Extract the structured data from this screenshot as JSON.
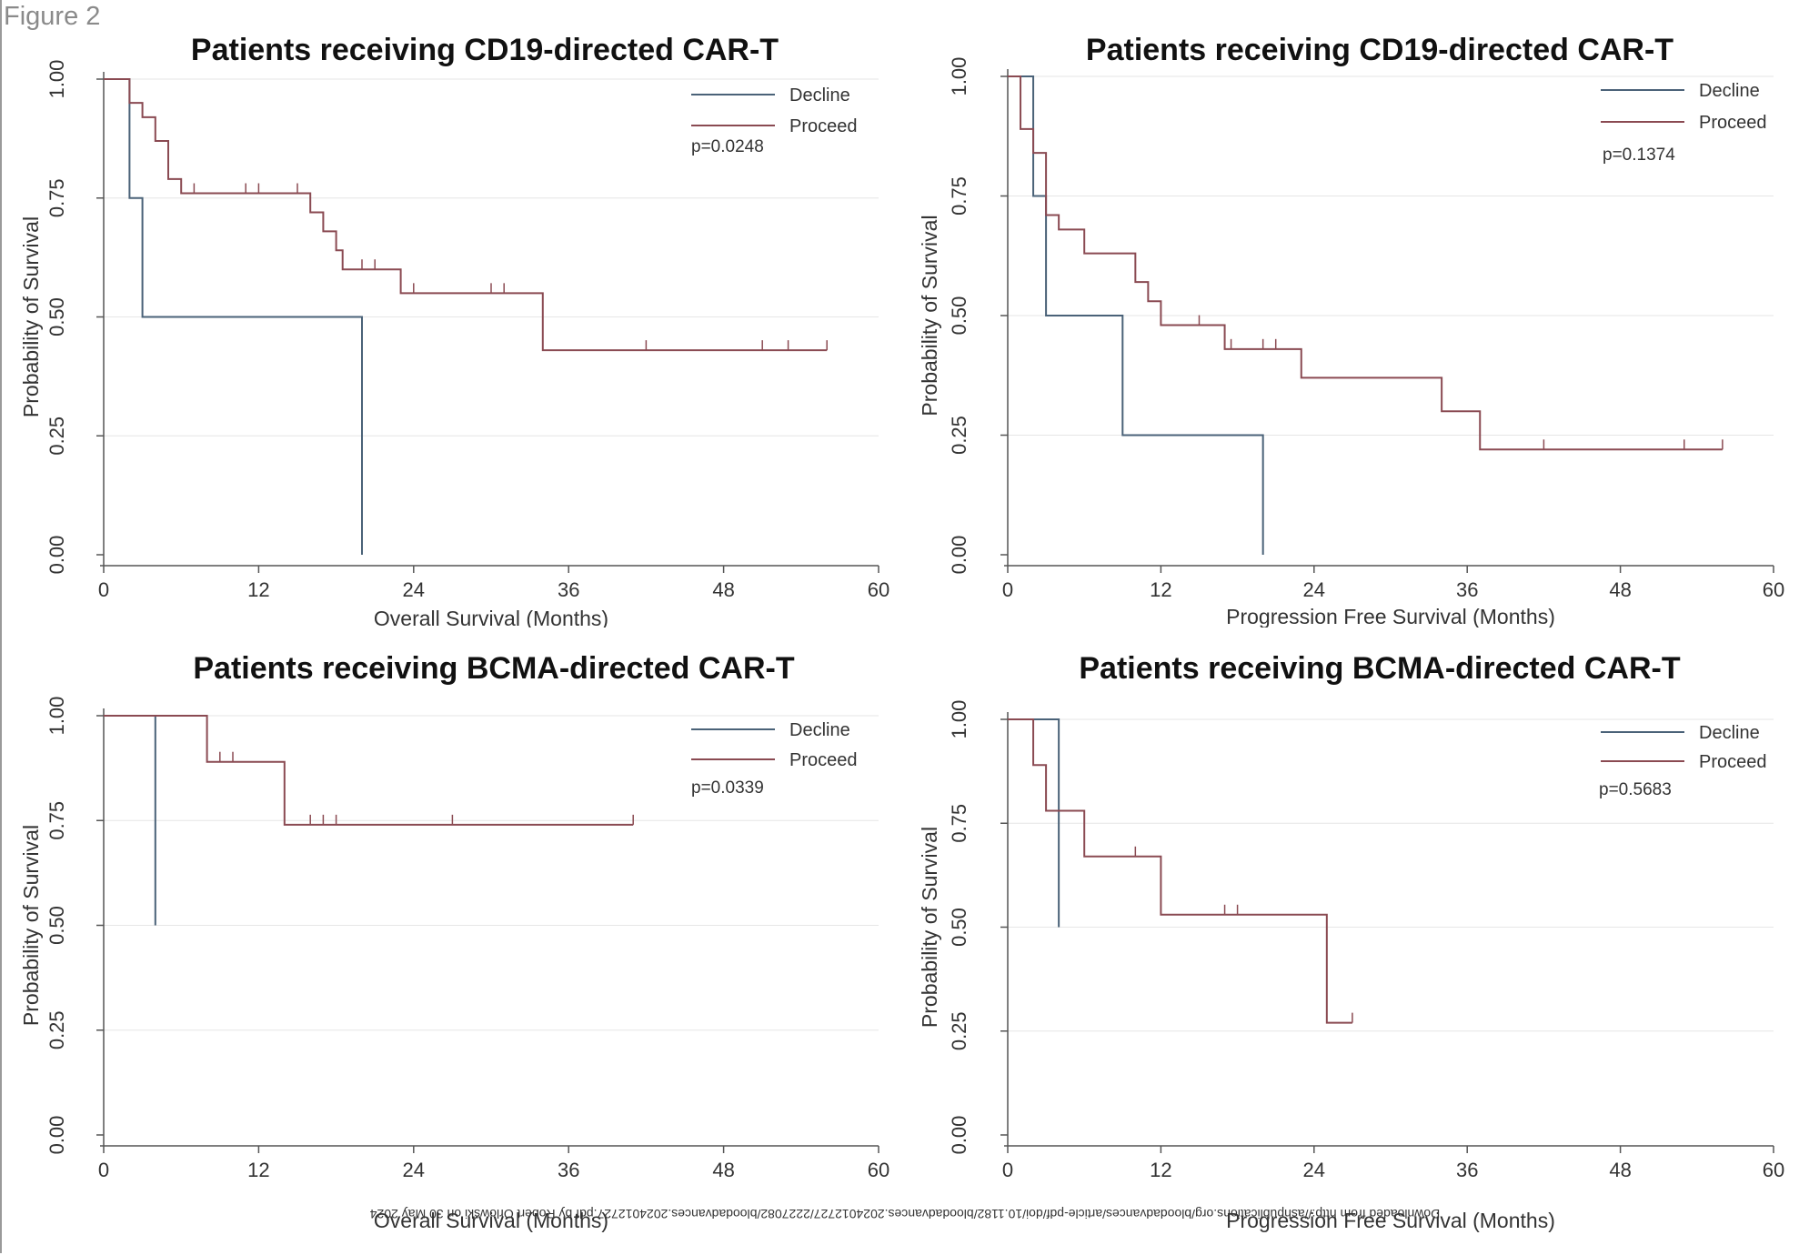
{
  "figure_label": "Figure 2",
  "watermark": "Downloaded from http://ashpublications.org/bloodadvances/article-pdf/doi/10.1182/bloodadvances.2024012727/2227082/bloodadvances.2024012727.pdf by Robert Orlowski on 30 May 2024",
  "colors": {
    "decline": "#4a6278",
    "proceed": "#8a4a52",
    "axis": "#555555",
    "grid": "#e6e6e6"
  },
  "chart_data": [
    {
      "type": "line",
      "title": "Patients receiving CD19-directed CAR-T",
      "xlabel": "Overall Survival (Months)",
      "ylabel": "Probability of Survival",
      "xlim": [
        0,
        60
      ],
      "ylim": [
        0,
        1
      ],
      "xticks": [
        "0",
        "12",
        "24",
        "36",
        "48",
        "60"
      ],
      "yticks": [
        "0.00",
        "0.25",
        "0.50",
        "0.75",
        "1.00"
      ],
      "pvalue": "p=0.0248",
      "legend_position": "top-right",
      "grid": true,
      "series": [
        {
          "name": "Decline",
          "color": "#4a6278",
          "x": [
            0,
            2,
            3,
            20,
            20
          ],
          "y": [
            1.0,
            0.75,
            0.5,
            0.5,
            0.0
          ],
          "censor": []
        },
        {
          "name": "Proceed",
          "color": "#8a4a52",
          "x": [
            0,
            2,
            3,
            4,
            5,
            6,
            16,
            17,
            18,
            18.5,
            23,
            34,
            56
          ],
          "y": [
            1.0,
            0.95,
            0.92,
            0.87,
            0.79,
            0.76,
            0.72,
            0.68,
            0.64,
            0.6,
            0.55,
            0.43,
            0.43
          ],
          "censor": [
            [
              7,
              0.76
            ],
            [
              11,
              0.76
            ],
            [
              12,
              0.76
            ],
            [
              15,
              0.76
            ],
            [
              20,
              0.6
            ],
            [
              21,
              0.6
            ],
            [
              24,
              0.55
            ],
            [
              30,
              0.55
            ],
            [
              31,
              0.55
            ],
            [
              42,
              0.43
            ],
            [
              51,
              0.43
            ],
            [
              53,
              0.43
            ],
            [
              56,
              0.43
            ]
          ]
        }
      ]
    },
    {
      "type": "line",
      "title": "Patients receiving CD19-directed CAR-T",
      "xlabel": "Progression Free Survival (Months)",
      "ylabel": "Probability of Survival",
      "xlim": [
        0,
        60
      ],
      "ylim": [
        0,
        1
      ],
      "xticks": [
        "0",
        "12",
        "24",
        "36",
        "48",
        "60"
      ],
      "yticks": [
        "0.00",
        "0.25",
        "0.50",
        "0.75",
        "1.00"
      ],
      "pvalue": "p=0.1374",
      "legend_position": "top-right",
      "grid": true,
      "series": [
        {
          "name": "Decline",
          "color": "#4a6278",
          "x": [
            0,
            2,
            3,
            9,
            20,
            20
          ],
          "y": [
            1.0,
            0.75,
            0.5,
            0.25,
            0.25,
            0.0
          ],
          "censor": []
        },
        {
          "name": "Proceed",
          "color": "#8a4a52",
          "x": [
            0,
            1,
            2,
            3,
            4,
            6,
            10,
            11,
            12,
            17,
            23,
            34,
            37,
            56
          ],
          "y": [
            1.0,
            0.89,
            0.84,
            0.71,
            0.68,
            0.63,
            0.57,
            0.53,
            0.48,
            0.43,
            0.37,
            0.3,
            0.22,
            0.22
          ],
          "censor": [
            [
              15,
              0.48
            ],
            [
              17.5,
              0.43
            ],
            [
              20,
              0.43
            ],
            [
              21,
              0.43
            ],
            [
              42,
              0.22
            ],
            [
              53,
              0.22
            ],
            [
              56,
              0.22
            ]
          ]
        }
      ]
    },
    {
      "type": "line",
      "title": "Patients receiving BCMA-directed CAR-T",
      "xlabel": "Overall Survival (Months)",
      "ylabel": "Probability of Survival",
      "xlim": [
        0,
        60
      ],
      "ylim": [
        0,
        1
      ],
      "xticks": [
        "0",
        "12",
        "24",
        "36",
        "48",
        "60"
      ],
      "yticks": [
        "0.00",
        "0.25",
        "0.50",
        "0.75",
        "1.00"
      ],
      "pvalue": "p=0.0339",
      "legend_position": "top-right",
      "grid": true,
      "series": [
        {
          "name": "Decline",
          "color": "#4a6278",
          "x": [
            0,
            4,
            4
          ],
          "y": [
            1.0,
            1.0,
            0.5
          ],
          "censor": []
        },
        {
          "name": "Proceed",
          "color": "#8a4a52",
          "x": [
            0,
            8,
            14,
            41
          ],
          "y": [
            1.0,
            0.89,
            0.74,
            0.74
          ],
          "censor": [
            [
              9,
              0.89
            ],
            [
              10,
              0.89
            ],
            [
              16,
              0.74
            ],
            [
              17,
              0.74
            ],
            [
              18,
              0.74
            ],
            [
              27,
              0.74
            ],
            [
              41,
              0.74
            ]
          ]
        }
      ]
    },
    {
      "type": "line",
      "title": "Patients receiving BCMA-directed CAR-T",
      "xlabel": "Progression Free Survival (Months)",
      "ylabel": "Probability of Survival",
      "xlim": [
        0,
        60
      ],
      "ylim": [
        0,
        1
      ],
      "xticks": [
        "0",
        "12",
        "24",
        "36",
        "48",
        "60"
      ],
      "yticks": [
        "0.00",
        "0.25",
        "0.50",
        "0.75",
        "1.00"
      ],
      "pvalue": "p=0.5683",
      "legend_position": "top-right",
      "grid": true,
      "series": [
        {
          "name": "Decline",
          "color": "#4a6278",
          "x": [
            0,
            4,
            4
          ],
          "y": [
            1.0,
            1.0,
            0.5
          ],
          "censor": []
        },
        {
          "name": "Proceed",
          "color": "#8a4a52",
          "x": [
            0,
            2,
            3,
            6,
            12,
            25,
            27
          ],
          "y": [
            1.0,
            0.89,
            0.78,
            0.67,
            0.53,
            0.27,
            0.27
          ],
          "censor": [
            [
              10,
              0.67
            ],
            [
              17,
              0.53
            ],
            [
              18,
              0.53
            ],
            [
              27,
              0.27
            ]
          ]
        }
      ]
    }
  ]
}
